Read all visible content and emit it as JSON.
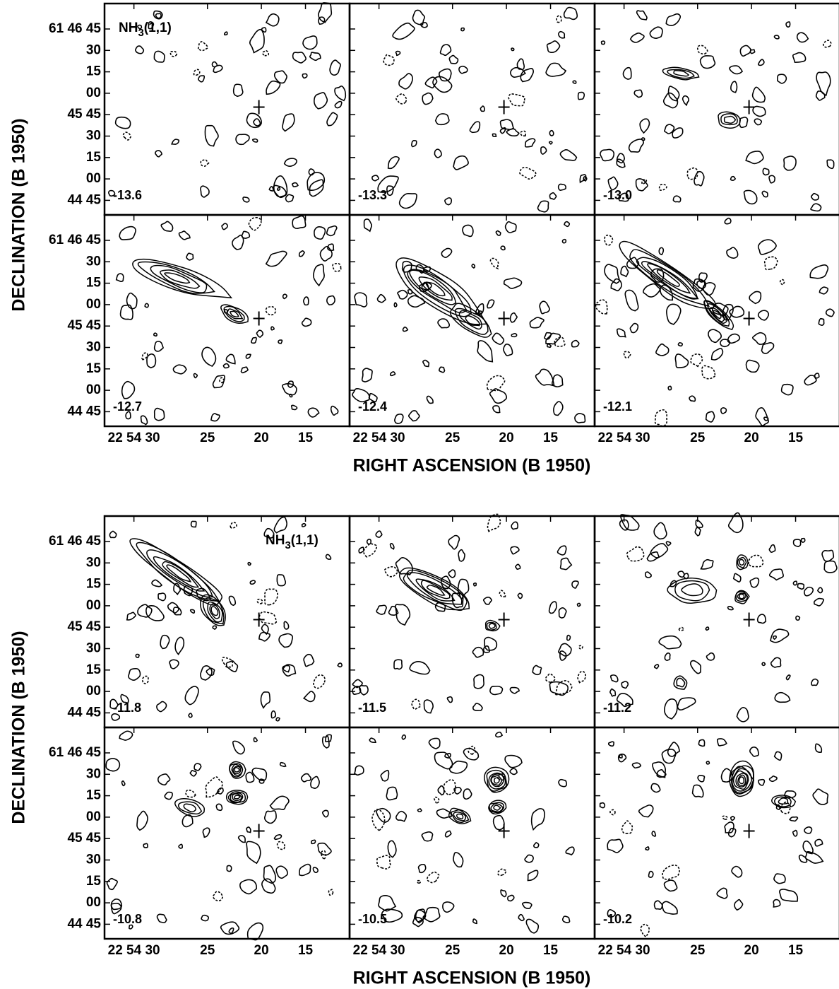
{
  "figures": [
    {
      "y_axis_title": "DECLINATION (B 1950)",
      "x_axis_title": "RIGHT ASCENSION (B 1950)",
      "molecule_label": {
        "base": "NH",
        "subscript": "3",
        "suffix": "(1,1)"
      },
      "rows": [
        {
          "y_tick_labels": [
            "61 46 45",
            "30",
            "15",
            "00",
            "45 45",
            "30",
            "15",
            "00",
            "44 45"
          ],
          "panels": [
            "-13.6",
            "-13.3",
            "-13.0"
          ]
        },
        {
          "y_tick_labels": [
            "61 46 45",
            "30",
            "15",
            "00",
            "45 45",
            "30",
            "15",
            "00",
            "44 45"
          ],
          "panels": [
            "-12.7",
            "-12.4",
            "-12.1"
          ]
        }
      ],
      "x_tick_labels": [
        [
          "22 54 30",
          "25",
          "20",
          "15"
        ],
        [
          "22 54 30",
          "25",
          "20",
          "15"
        ],
        [
          "22 54 30",
          "25",
          "20",
          "15"
        ]
      ]
    },
    {
      "y_axis_title": "DECLINATION (B 1950)",
      "x_axis_title": "RIGHT ASCENSION (B 1950)",
      "molecule_label": {
        "base": "NH",
        "subscript": "3",
        "suffix": "(1,1)"
      },
      "rows": [
        {
          "y_tick_labels": [
            "61 46 45",
            "30",
            "15",
            "00",
            "45 45",
            "30",
            "15",
            "00",
            "44 45"
          ],
          "panels": [
            "-11.8",
            "-11.5",
            "-11.2"
          ]
        },
        {
          "y_tick_labels": [
            "61 46 45",
            "30",
            "15",
            "00",
            "45 45",
            "30",
            "15",
            "00",
            "44 45"
          ],
          "panels": [
            "-10.8",
            "-10.5",
            "-10.2"
          ]
        }
      ],
      "x_tick_labels": [
        [
          "22 54 30",
          "25",
          "20",
          "15"
        ],
        [
          "22 54 30",
          "25",
          "20",
          "15"
        ],
        [
          "22 54 30",
          "25",
          "20",
          "15"
        ]
      ]
    }
  ]
}
